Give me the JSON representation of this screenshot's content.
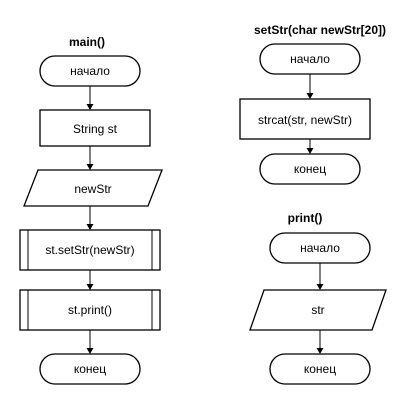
{
  "colors": {
    "stroke": "#000000",
    "fill": "#ffffff",
    "text": "#000000"
  },
  "diagrams": {
    "main": {
      "title": "main()",
      "nodes": [
        {
          "type": "terminator",
          "label": "начало"
        },
        {
          "type": "process",
          "label": "String st"
        },
        {
          "type": "io",
          "label": "newStr"
        },
        {
          "type": "subroutine",
          "label": "st.setStr(newStr)"
        },
        {
          "type": "subroutine",
          "label": "st.print()"
        },
        {
          "type": "terminator",
          "label": "конец"
        }
      ]
    },
    "setStr": {
      "title": "setStr(char newStr[20])",
      "nodes": [
        {
          "type": "terminator",
          "label": "начало"
        },
        {
          "type": "process",
          "label": "strcat(str, newStr)"
        },
        {
          "type": "terminator",
          "label": "конец"
        }
      ]
    },
    "print": {
      "title": "print()",
      "nodes": [
        {
          "type": "terminator",
          "label": "начало"
        },
        {
          "type": "io",
          "label": "str"
        },
        {
          "type": "terminator",
          "label": "конец"
        }
      ]
    }
  }
}
